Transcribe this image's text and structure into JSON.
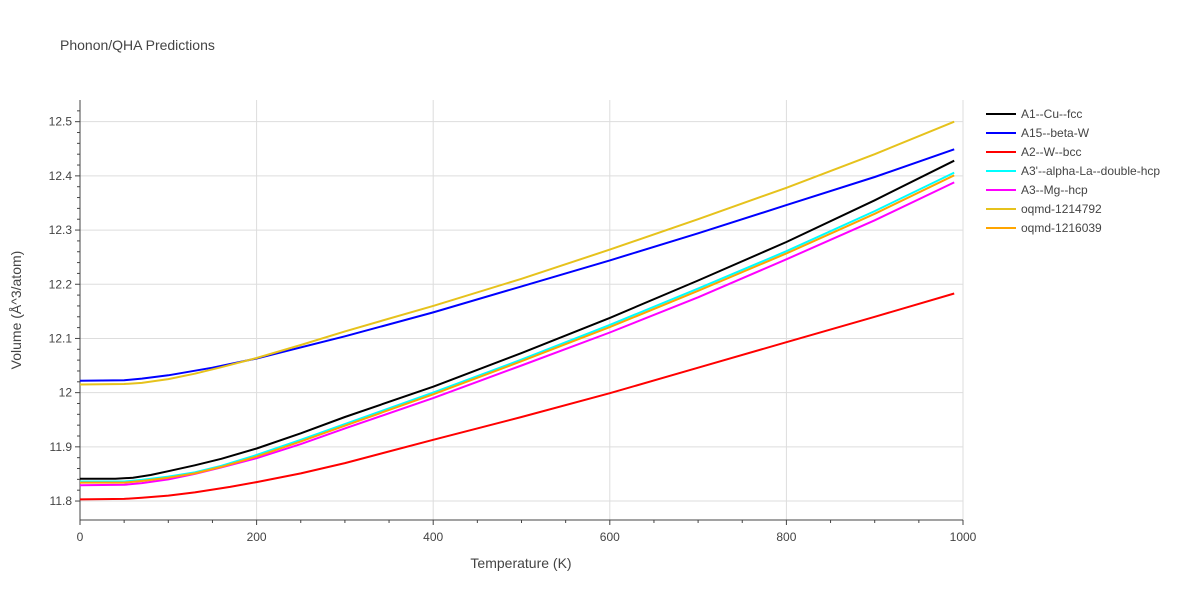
{
  "chart_data": {
    "type": "line",
    "title": "Phonon/QHA Predictions",
    "xlabel": "Temperature (K)",
    "ylabel": "Volume (Å^3/atom)",
    "xlim": [
      0,
      1000
    ],
    "ylim": [
      11.765,
      12.54
    ],
    "xticks": [
      0,
      200,
      400,
      600,
      800,
      1000
    ],
    "xtick_labels": [
      "0",
      "200",
      "400",
      "600",
      "800",
      "1000"
    ],
    "yticks": [
      11.8,
      11.9,
      12.0,
      12.1,
      12.2,
      12.3,
      12.4,
      12.5
    ],
    "ytick_labels": [
      "11.8",
      "11.9",
      "12",
      "12.1",
      "12.2",
      "12.3",
      "12.4",
      "12.5"
    ],
    "grid": true,
    "legend_position": "right",
    "series": [
      {
        "name": "A1--Cu--fcc",
        "color": "#000000",
        "x": [
          0,
          40,
          60,
          80,
          100,
          130,
          160,
          200,
          250,
          300,
          400,
          500,
          600,
          700,
          800,
          900,
          990
        ],
        "y": [
          11.841,
          11.841,
          11.843,
          11.848,
          11.855,
          11.866,
          11.878,
          11.897,
          11.925,
          11.955,
          12.011,
          12.073,
          12.138,
          12.207,
          12.278,
          12.355,
          12.428
        ]
      },
      {
        "name": "A15--beta-W",
        "color": "#0000ff",
        "x": [
          0,
          50,
          70,
          100,
          150,
          200,
          300,
          400,
          500,
          600,
          700,
          800,
          900,
          990
        ],
        "y": [
          12.022,
          12.023,
          12.026,
          12.032,
          12.046,
          12.063,
          12.104,
          12.148,
          12.196,
          12.244,
          12.294,
          12.346,
          12.398,
          12.449
        ]
      },
      {
        "name": "A2--W--bcc",
        "color": "#ff0000",
        "x": [
          0,
          50,
          70,
          100,
          130,
          170,
          200,
          250,
          300,
          400,
          500,
          600,
          700,
          800,
          900,
          990
        ],
        "y": [
          11.803,
          11.804,
          11.806,
          11.81,
          11.816,
          11.826,
          11.835,
          11.851,
          11.87,
          11.913,
          11.955,
          11.999,
          12.046,
          12.093,
          12.14,
          12.183
        ]
      },
      {
        "name": "A3'--alpha-La--double-hcp",
        "color": "#00ffff",
        "x": [
          0,
          50,
          70,
          100,
          130,
          160,
          200,
          250,
          300,
          400,
          500,
          600,
          700,
          800,
          900,
          990
        ],
        "y": [
          11.836,
          11.836,
          11.839,
          11.845,
          11.853,
          11.865,
          11.885,
          11.913,
          11.942,
          12.0,
          12.061,
          12.125,
          12.192,
          12.261,
          12.335,
          12.406
        ]
      },
      {
        "name": "A3--Mg--hcp",
        "color": "#ff00ff",
        "x": [
          0,
          50,
          70,
          100,
          130,
          160,
          200,
          250,
          300,
          400,
          500,
          600,
          700,
          800,
          900,
          990
        ],
        "y": [
          11.829,
          11.83,
          11.833,
          11.84,
          11.85,
          11.862,
          11.879,
          11.905,
          11.934,
          11.99,
          12.05,
          12.111,
          12.176,
          12.246,
          12.318,
          12.388
        ]
      },
      {
        "name": "oqmd-1214792",
        "color": "#e6c21c",
        "x": [
          0,
          50,
          70,
          100,
          130,
          160,
          200,
          250,
          300,
          400,
          500,
          600,
          700,
          800,
          900,
          990
        ],
        "y": [
          12.015,
          12.016,
          12.018,
          12.025,
          12.035,
          12.047,
          12.064,
          12.088,
          12.113,
          12.16,
          12.21,
          12.264,
          12.32,
          12.378,
          12.44,
          12.5
        ]
      },
      {
        "name": "oqmd-1216039",
        "color": "#ffa500",
        "x": [
          0,
          50,
          70,
          100,
          130,
          160,
          200,
          250,
          300,
          400,
          500,
          600,
          700,
          800,
          900,
          990
        ],
        "y": [
          11.834,
          11.834,
          11.837,
          11.843,
          11.851,
          11.863,
          11.882,
          11.91,
          11.939,
          11.997,
          12.058,
          12.121,
          12.188,
          12.257,
          12.33,
          12.401
        ]
      }
    ]
  }
}
